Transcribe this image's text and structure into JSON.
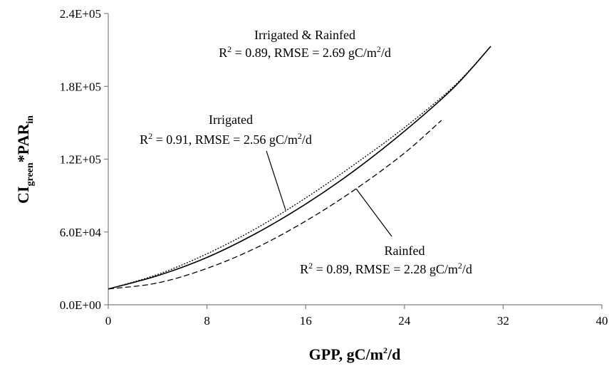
{
  "chart_data": {
    "type": "line",
    "xlabel": {
      "base": "GPP, gC/m",
      "sup": "2",
      "tail": "/d"
    },
    "ylabel": {
      "p1": "CI",
      "sub1": "green",
      "p2": "*PAR",
      "sub2": "in"
    },
    "xlim": [
      0,
      40
    ],
    "ylim": [
      0,
      240000
    ],
    "x_ticks": [
      "0",
      "8",
      "16",
      "24",
      "32",
      "40"
    ],
    "y_ticks": [
      "0.0E+00",
      "6.0E+04",
      "1.2E+05",
      "1.8E+05",
      "2.4E+05"
    ],
    "grid": false,
    "series": [
      {
        "name": "Irrigated & Rainfed",
        "style": "dotted",
        "x": [
          0,
          4,
          8,
          12,
          16,
          20,
          24,
          28,
          31
        ],
        "y": [
          13000,
          25000,
          42000,
          63000,
          88000,
          116000,
          146000,
          180000,
          213000
        ]
      },
      {
        "name": "Irrigated",
        "style": "solid",
        "x": [
          0,
          4,
          8,
          12,
          16,
          20,
          24,
          28,
          31
        ],
        "y": [
          13000,
          24000,
          39000,
          59000,
          83000,
          111000,
          143000,
          179000,
          213000
        ]
      },
      {
        "name": "Rainfed",
        "style": "dashed",
        "x": [
          0,
          4,
          8,
          12,
          16,
          20,
          24,
          27
        ],
        "y": [
          13000,
          18000,
          30000,
          47000,
          69000,
          95000,
          125000,
          152000
        ]
      }
    ],
    "annotations": [
      {
        "label": "Irrigated & Rainfed",
        "stat": "R",
        "sup": "2",
        "mid": " = 0.89, RMSE = 2.69 gC/m",
        "sup2": "2",
        "end": "/d"
      },
      {
        "label": "Irrigated",
        "stat": "R",
        "sup": "2",
        "mid": " = 0.91, RMSE = 2.56 gC/m",
        "sup2": "2",
        "end": "/d"
      },
      {
        "label": "Rainfed",
        "stat": "R",
        "sup": "2",
        "mid": " = 0.89, RMSE = 2.28 gC/m",
        "sup2": "2",
        "end": "/d"
      }
    ]
  }
}
